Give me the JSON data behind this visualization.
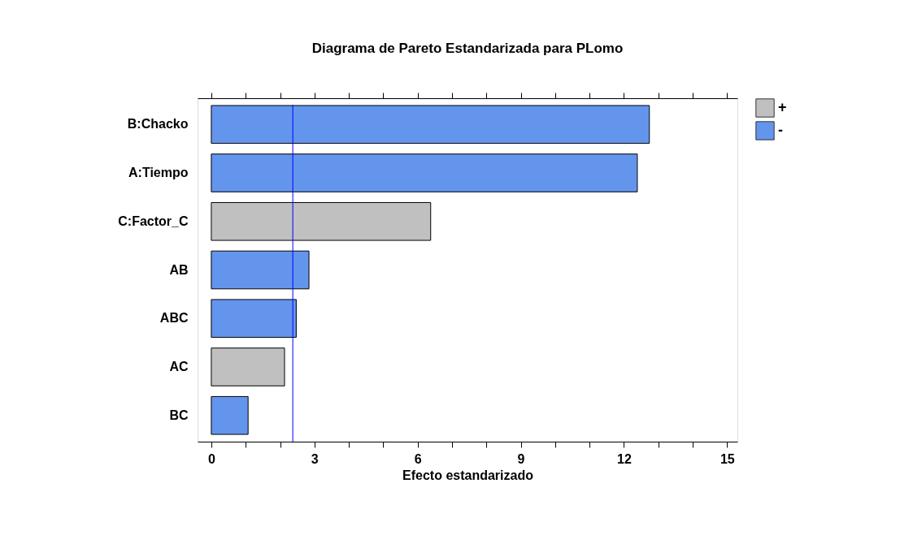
{
  "chart_data": {
    "type": "bar",
    "orientation": "horizontal",
    "title": "Diagrama de Pareto Estandarizada para PLomo",
    "xlabel": "Efecto estandarizado",
    "categories": [
      "B:Chacko",
      "A:Tiempo",
      "C:Factor_C",
      "AB",
      "ABC",
      "AC",
      "BC"
    ],
    "series": [
      {
        "name": "+",
        "color": "#c0c0c0",
        "values": [
          null,
          null,
          6.38,
          null,
          null,
          2.13,
          null
        ]
      },
      {
        "name": "-",
        "color": "#6495ed",
        "values": [
          12.74,
          12.39,
          null,
          2.84,
          2.47,
          null,
          1.07
        ]
      }
    ],
    "xlim": [
      -0.4,
      15.3
    ],
    "xticks": [
      0,
      {
        "value": 1,
        "label": null
      },
      {
        "value": 2,
        "label": null
      },
      3,
      {
        "value": 4,
        "label": null
      },
      {
        "value": 5,
        "label": null
      },
      6,
      {
        "value": 7,
        "label": null
      },
      {
        "value": 8,
        "label": null
      },
      9,
      {
        "value": 10,
        "label": null
      },
      {
        "value": 11,
        "label": null
      },
      12,
      {
        "value": 13,
        "label": null
      },
      {
        "value": 14,
        "label": null
      },
      15
    ],
    "ref_lines": [
      {
        "axis": "x",
        "value": 2.37,
        "color": "#0000ff"
      }
    ],
    "legend": "top right",
    "grid": false
  }
}
